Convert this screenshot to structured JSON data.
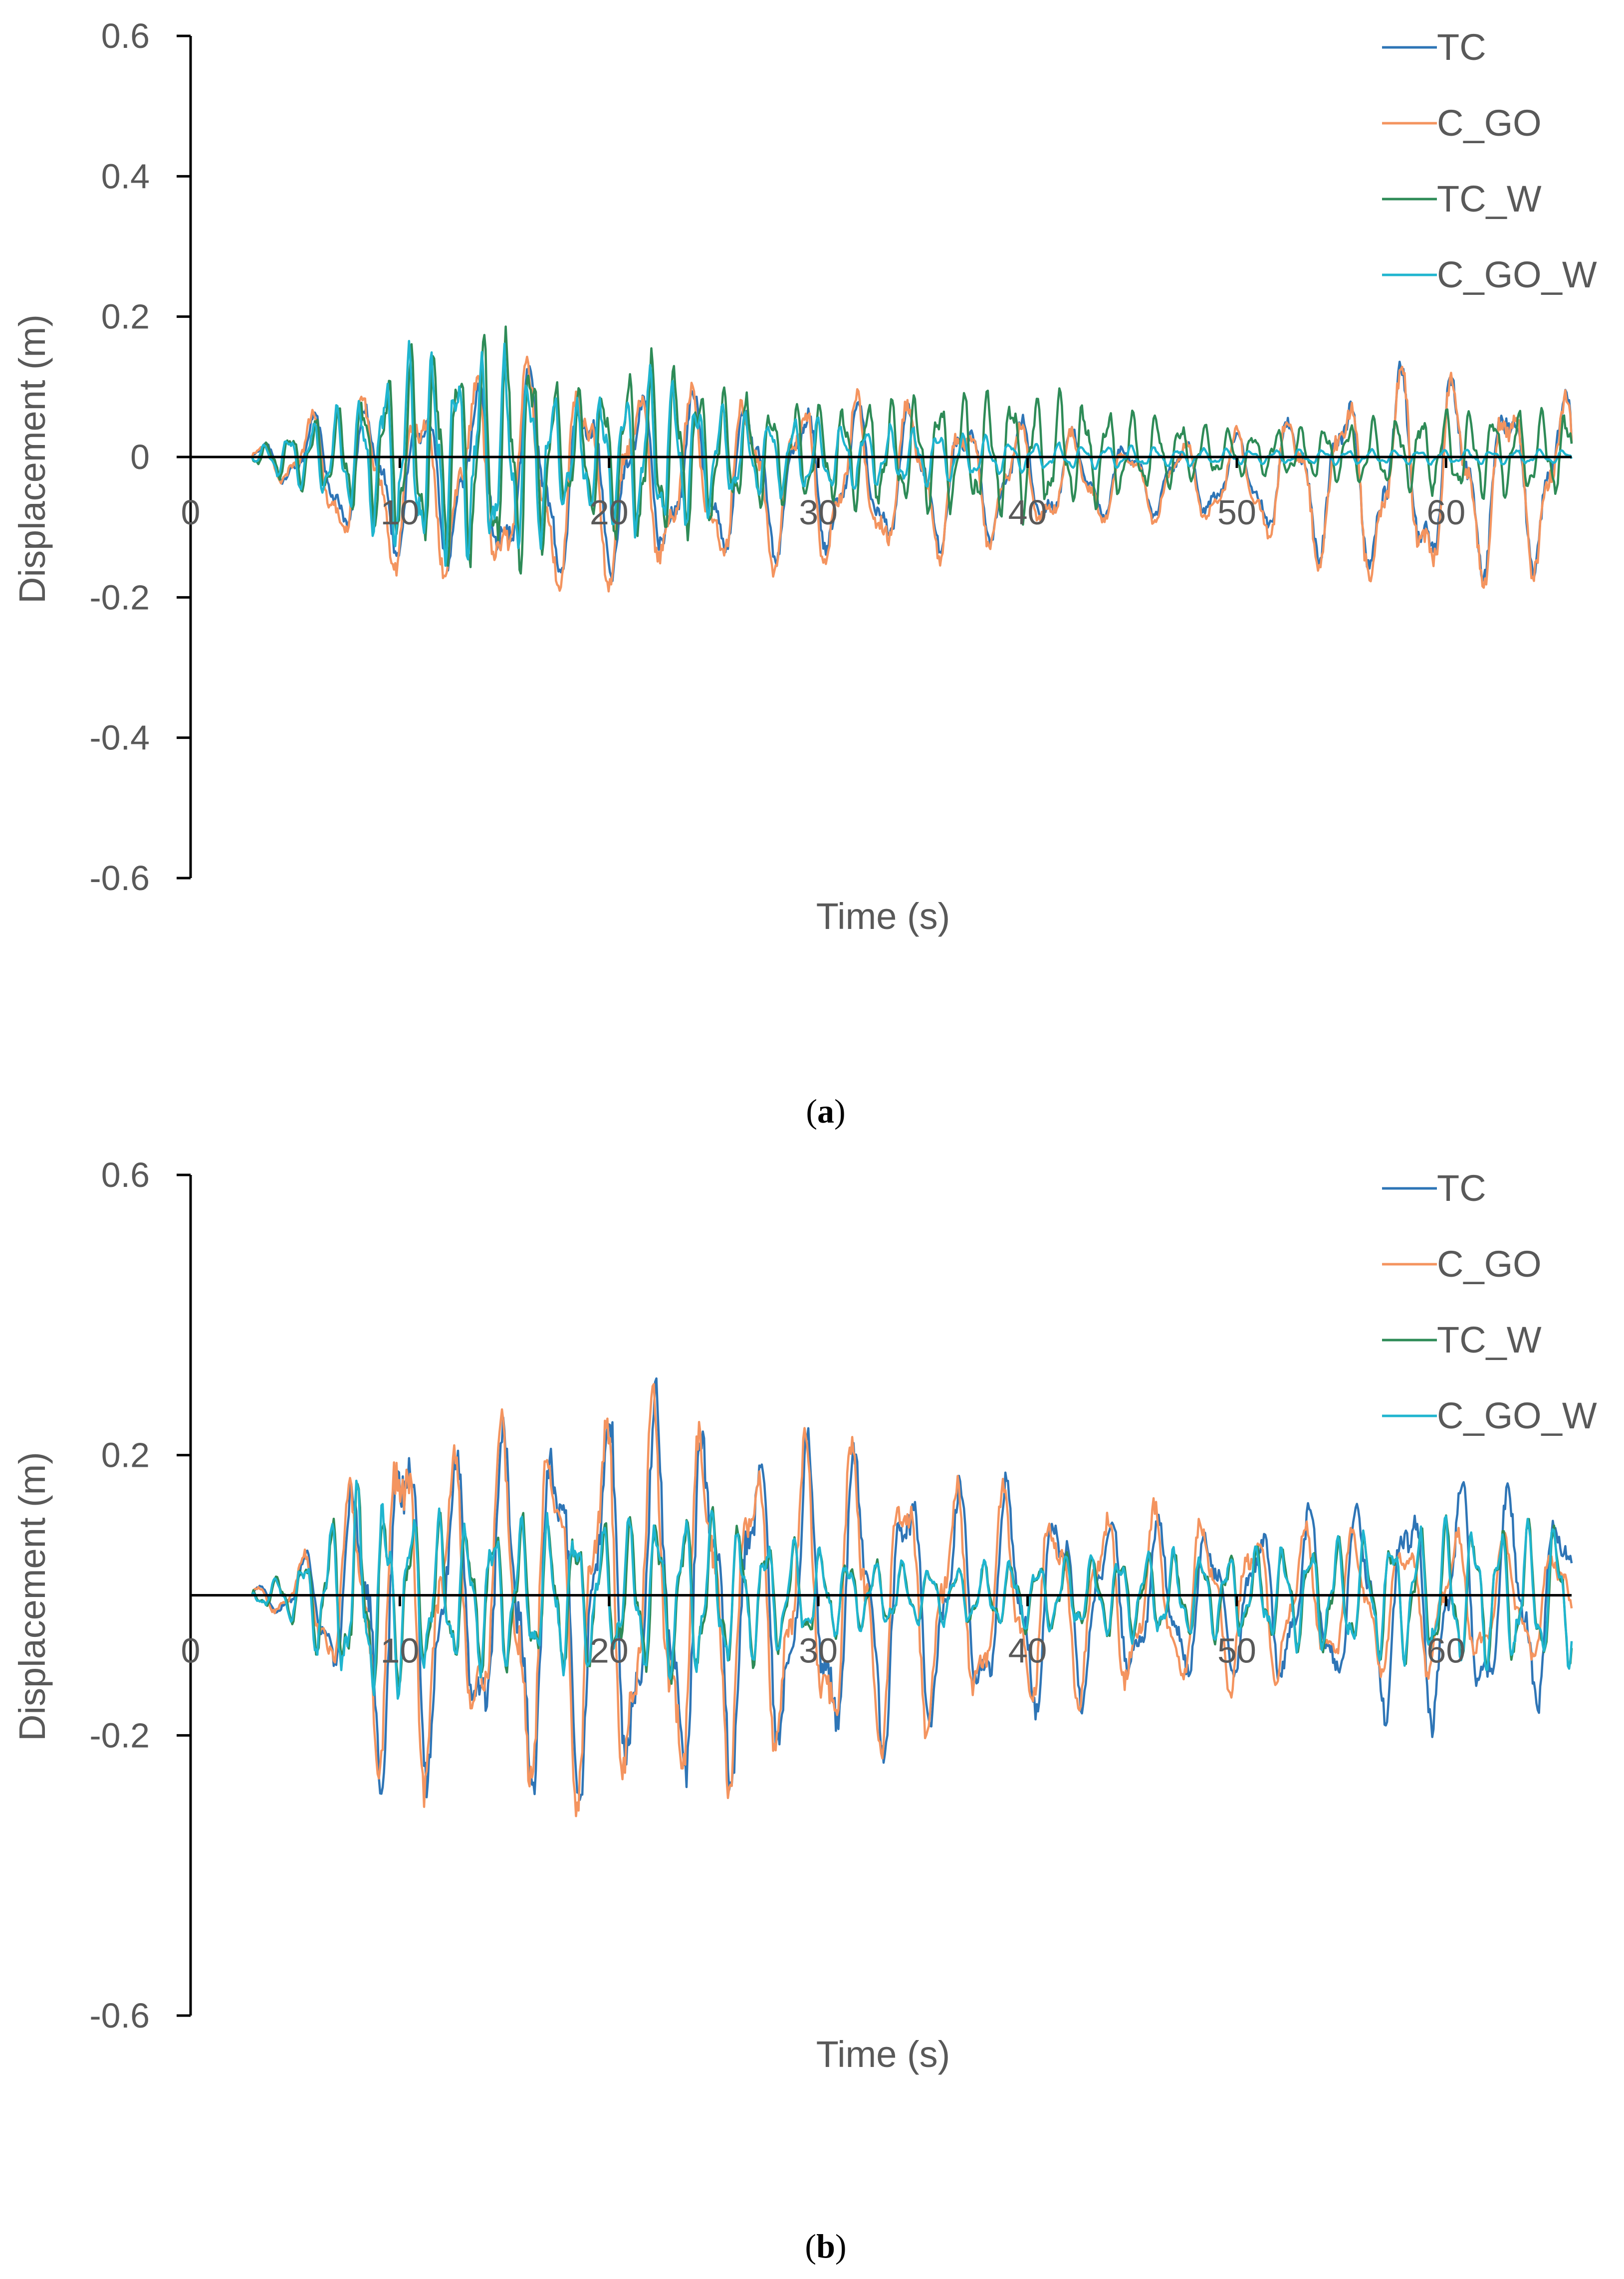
{
  "figure": {
    "captions": [
      "(a)",
      "(b)"
    ]
  },
  "colors": {
    "TC": "#2e75b6",
    "C_GO": "#f4945f",
    "TC_W": "#2e8b57",
    "C_GO_W": "#1fb5cf"
  },
  "chart_data": [
    {
      "panel": "a",
      "type": "line",
      "caption_letter": "a",
      "xlabel": "Time (s)",
      "ylabel": "Displacement (m)",
      "xlim": [
        0,
        66
      ],
      "ylim": [
        -0.6,
        0.6
      ],
      "x_ticks": [
        0,
        10,
        20,
        30,
        40,
        50,
        60
      ],
      "y_ticks": [
        0.6,
        0.4,
        0.2,
        0,
        -0.2,
        -0.4,
        -0.6
      ],
      "y_tick_labels": [
        "0.6",
        "0.4",
        "0.2",
        "0",
        "-0.2",
        "-0.4",
        "-0.6"
      ],
      "legend_position": "top-right",
      "series": [
        {
          "name": "TC",
          "color": "#2e75b6",
          "period": 2.6,
          "phase": 0.0,
          "envelope_t": [
            0,
            3,
            5,
            8,
            12,
            17,
            22,
            26,
            30,
            35,
            40,
            45,
            50,
            55,
            58,
            62,
            66
          ],
          "envelope_a": [
            0,
            0.01,
            0.05,
            0.1,
            0.12,
            0.15,
            0.12,
            0.11,
            0.11,
            0.1,
            0.08,
            0.05,
            0.06,
            0.12,
            0.15,
            0.14,
            0.12
          ],
          "offset": -0.03
        },
        {
          "name": "C_GO",
          "color": "#f4945f",
          "period": 2.6,
          "phase": 0.35,
          "envelope_t": [
            0,
            3,
            5,
            8,
            12,
            17,
            22,
            26,
            30,
            35,
            40,
            45,
            50,
            55,
            58,
            62,
            66
          ],
          "envelope_a": [
            0,
            0.01,
            0.05,
            0.12,
            0.13,
            0.17,
            0.13,
            0.12,
            0.12,
            0.11,
            0.08,
            0.05,
            0.07,
            0.13,
            0.16,
            0.14,
            0.12
          ],
          "offset": -0.035
        },
        {
          "name": "TC_W",
          "color": "#2e8b57",
          "period": 1.15,
          "phase": 0.6,
          "envelope_t": [
            0,
            3,
            5,
            8,
            10,
            12,
            16,
            18,
            22,
            26,
            30,
            35,
            40,
            45,
            50,
            55,
            60,
            66
          ],
          "envelope_a": [
            0,
            0.01,
            0.04,
            0.08,
            0.13,
            0.15,
            0.17,
            0.08,
            0.14,
            0.08,
            0.07,
            0.08,
            0.09,
            0.06,
            0.03,
            0.04,
            0.06,
            0.06
          ],
          "offset": 0.005
        },
        {
          "name": "C_GO_W",
          "color": "#1fb5cf",
          "period": 1.15,
          "phase": 1.1,
          "envelope_t": [
            0,
            3,
            5,
            8,
            10,
            12,
            16,
            18,
            22,
            26,
            30,
            35,
            40,
            45,
            50,
            55,
            60,
            66
          ],
          "envelope_a": [
            0,
            0.01,
            0.04,
            0.08,
            0.14,
            0.15,
            0.14,
            0.07,
            0.12,
            0.06,
            0.05,
            0.04,
            0.02,
            0.015,
            0.01,
            0.01,
            0.01,
            0.01
          ],
          "offset": 0.0
        }
      ]
    },
    {
      "panel": "b",
      "type": "line",
      "caption_letter": "b",
      "xlabel": "Time (s)",
      "ylabel": "Displacement (m)",
      "xlim": [
        0,
        66
      ],
      "ylim": [
        -0.6,
        0.6
      ],
      "x_ticks": [
        0,
        10,
        20,
        30,
        40,
        50,
        60
      ],
      "y_ticks": [
        0.6,
        0.2,
        -0.2,
        -0.6
      ],
      "y_tick_labels": [
        "0.6",
        "0.2",
        "-0.2",
        "-0.6"
      ],
      "legend_position": "top-right",
      "series": [
        {
          "name": "TC",
          "color": "#2e75b6",
          "period": 2.4,
          "phase": 0.0,
          "envelope_t": [
            0,
            3,
            5,
            7,
            10,
            13,
            16,
            20,
            24,
            28,
            32,
            36,
            40,
            45,
            50,
            55,
            60,
            66
          ],
          "envelope_a": [
            0,
            0.01,
            0.04,
            0.12,
            0.3,
            0.2,
            0.27,
            0.28,
            0.27,
            0.22,
            0.22,
            0.17,
            0.16,
            0.12,
            0.1,
            0.14,
            0.18,
            0.14
          ],
          "offset": -0.01
        },
        {
          "name": "C_GO",
          "color": "#f4945f",
          "period": 2.4,
          "phase": 0.25,
          "envelope_t": [
            0,
            3,
            5,
            7,
            10,
            13,
            16,
            20,
            24,
            28,
            32,
            36,
            40,
            45,
            50,
            55,
            60,
            66
          ],
          "envelope_a": [
            0,
            0.01,
            0.04,
            0.13,
            0.3,
            0.2,
            0.27,
            0.29,
            0.27,
            0.22,
            0.23,
            0.17,
            0.15,
            0.13,
            0.12,
            0.1,
            0.1,
            0.08
          ],
          "offset": -0.01
        },
        {
          "name": "TC_W",
          "color": "#2e8b57",
          "period": 1.3,
          "phase": 0.5,
          "envelope_t": [
            0,
            3,
            5,
            8,
            10,
            13,
            16,
            20,
            24,
            28,
            32,
            36,
            40,
            45,
            50,
            55,
            60,
            66
          ],
          "envelope_a": [
            0,
            0.01,
            0.04,
            0.15,
            0.12,
            0.1,
            0.11,
            0.1,
            0.12,
            0.08,
            0.05,
            0.04,
            0.05,
            0.06,
            0.06,
            0.08,
            0.1,
            0.1
          ],
          "offset": 0.0
        },
        {
          "name": "C_GO_W",
          "color": "#1fb5cf",
          "period": 1.3,
          "phase": 0.65,
          "envelope_t": [
            0,
            3,
            5,
            8,
            10,
            13,
            16,
            20,
            24,
            28,
            32,
            36,
            40,
            45,
            50,
            55,
            60,
            66
          ],
          "envelope_a": [
            0,
            0.01,
            0.04,
            0.16,
            0.13,
            0.1,
            0.11,
            0.1,
            0.12,
            0.08,
            0.05,
            0.04,
            0.05,
            0.06,
            0.06,
            0.08,
            0.1,
            0.1
          ],
          "offset": 0.0
        }
      ]
    }
  ]
}
